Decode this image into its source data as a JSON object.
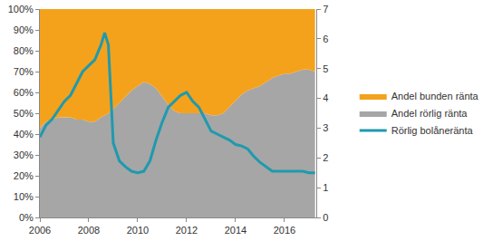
{
  "chart_data": {
    "type": "area",
    "stacked": true,
    "grid": false,
    "legend": "right",
    "x": [
      2006,
      2006.25,
      2006.5,
      2006.75,
      2007,
      2007.25,
      2007.5,
      2007.75,
      2008,
      2008.25,
      2008.5,
      2008.65,
      2008.8,
      2009,
      2009.25,
      2009.5,
      2009.75,
      2010,
      2010.25,
      2010.5,
      2010.75,
      2011,
      2011.25,
      2011.5,
      2011.75,
      2012,
      2012.25,
      2012.5,
      2012.75,
      2013,
      2013.25,
      2013.5,
      2013.75,
      2014,
      2014.25,
      2014.5,
      2014.75,
      2015,
      2015.25,
      2015.5,
      2015.75,
      2016,
      2016.25,
      2016.5,
      2016.75,
      2017,
      2017.25
    ],
    "xlim": [
      2006,
      2017.3
    ],
    "xticks": [
      2006,
      2008,
      2010,
      2012,
      2014,
      2016
    ],
    "ylim": [
      0,
      100
    ],
    "yticks": [
      {
        "value": 0,
        "label": "0%"
      },
      {
        "value": 10,
        "label": "10%"
      },
      {
        "value": 20,
        "label": "20%"
      },
      {
        "value": 30,
        "label": "30%"
      },
      {
        "value": 40,
        "label": "40%"
      },
      {
        "value": 50,
        "label": "50%"
      },
      {
        "value": 60,
        "label": "60%"
      },
      {
        "value": 70,
        "label": "70%"
      },
      {
        "value": 80,
        "label": "80%"
      },
      {
        "value": 90,
        "label": "90%"
      },
      {
        "value": 100,
        "label": "100%"
      }
    ],
    "y2lim": [
      0,
      7
    ],
    "y2ticks": [
      0,
      1,
      2,
      3,
      4,
      5,
      6,
      7
    ],
    "series": [
      {
        "name": "Andel rörlig ränta",
        "type": "area",
        "color": "#a6a6a6",
        "values": [
          43,
          46,
          47,
          48,
          48,
          48,
          47,
          47,
          46,
          46,
          48,
          49,
          50,
          52,
          55,
          58,
          61,
          63,
          65,
          64,
          62,
          58,
          54,
          51,
          50,
          50,
          50,
          50,
          50,
          49,
          49,
          50,
          53,
          56,
          59,
          61,
          62,
          63,
          65,
          67,
          68,
          69,
          69,
          70,
          71,
          71,
          70
        ]
      },
      {
        "name": "Andel bunden ränta",
        "type": "area",
        "color": "#f4a21c",
        "values": [
          57,
          54,
          53,
          52,
          52,
          52,
          53,
          53,
          54,
          54,
          52,
          51,
          50,
          48,
          45,
          42,
          39,
          37,
          35,
          36,
          38,
          42,
          46,
          49,
          50,
          50,
          50,
          50,
          50,
          51,
          51,
          50,
          47,
          44,
          41,
          39,
          38,
          37,
          35,
          33,
          32,
          31,
          31,
          30,
          29,
          29,
          30
        ]
      },
      {
        "name": "Rörlig bolåneränta",
        "type": "line",
        "axis": "y2",
        "color": "#1f9aae",
        "values": [
          2.7,
          3.1,
          3.3,
          3.6,
          3.9,
          4.1,
          4.5,
          4.9,
          5.1,
          5.3,
          5.8,
          6.2,
          5.8,
          2.5,
          1.9,
          1.7,
          1.55,
          1.5,
          1.55,
          1.9,
          2.6,
          3.2,
          3.7,
          3.9,
          4.1,
          4.2,
          3.9,
          3.7,
          3.3,
          2.9,
          2.8,
          2.7,
          2.6,
          2.45,
          2.4,
          2.3,
          2.05,
          1.85,
          1.7,
          1.55,
          1.55,
          1.55,
          1.55,
          1.55,
          1.55,
          1.5,
          1.5
        ]
      }
    ]
  }
}
